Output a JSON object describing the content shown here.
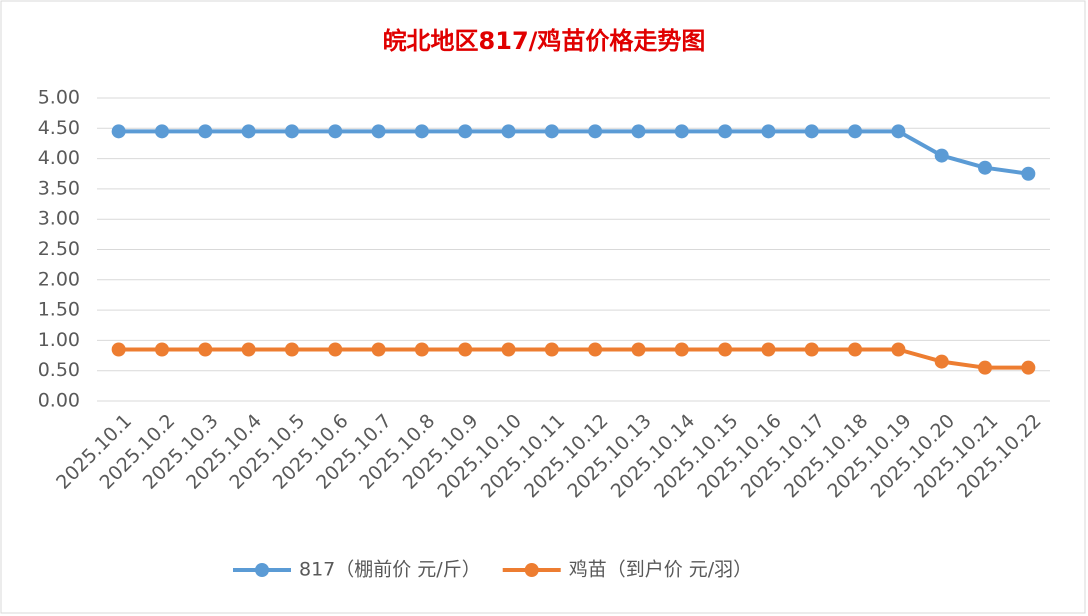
{
  "chart_data": {
    "type": "line",
    "title": "皖北地区817/鸡苗价格走势图",
    "categories": [
      "2025.10.1",
      "2025.10.2",
      "2025.10.3",
      "2025.10.4",
      "2025.10.5",
      "2025.10.6",
      "2025.10.7",
      "2025.10.8",
      "2025.10.9",
      "2025.10.10",
      "2025.10.11",
      "2025.10.12",
      "2025.10.13",
      "2025.10.14",
      "2025.10.15",
      "2025.10.16",
      "2025.10.17",
      "2025.10.18",
      "2025.10.19",
      "2025.10.20",
      "2025.10.21",
      "2025.10.22"
    ],
    "series": [
      {
        "name": "817（棚前价 元/斤）",
        "color": "#5b9bd5",
        "values": [
          4.45,
          4.45,
          4.45,
          4.45,
          4.45,
          4.45,
          4.45,
          4.45,
          4.45,
          4.45,
          4.45,
          4.45,
          4.45,
          4.45,
          4.45,
          4.45,
          4.45,
          4.45,
          4.45,
          4.05,
          3.85,
          3.75
        ]
      },
      {
        "name": "鸡苗（到户价 元/羽）",
        "color": "#ed7d31",
        "values": [
          0.85,
          0.85,
          0.85,
          0.85,
          0.85,
          0.85,
          0.85,
          0.85,
          0.85,
          0.85,
          0.85,
          0.85,
          0.85,
          0.85,
          0.85,
          0.85,
          0.85,
          0.85,
          0.85,
          0.65,
          0.55,
          0.55
        ]
      }
    ],
    "ylim": [
      0,
      5
    ],
    "yticks": [
      {
        "value": 0,
        "label": "0.00"
      },
      {
        "value": 0.5,
        "label": "0.50"
      },
      {
        "value": 1,
        "label": "1.00"
      },
      {
        "value": 1.5,
        "label": "1.50"
      },
      {
        "value": 2,
        "label": "2.00"
      },
      {
        "value": 2.5,
        "label": "2.50"
      },
      {
        "value": 3,
        "label": "3.00"
      },
      {
        "value": 3.5,
        "label": "3.50"
      },
      {
        "value": 4,
        "label": "4.00"
      },
      {
        "value": 4.5,
        "label": "4.50"
      },
      {
        "value": 5,
        "label": "5.00"
      }
    ],
    "grid": true,
    "legend": "bottom",
    "title_color": "#e00000"
  }
}
